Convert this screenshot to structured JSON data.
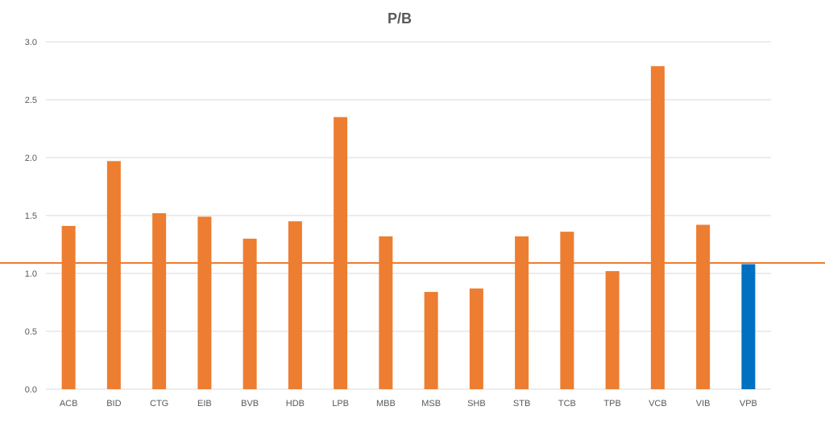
{
  "chart_data": {
    "type": "bar",
    "title": "P/B",
    "xlabel": "",
    "ylabel": "",
    "ylim": [
      0,
      3.0
    ],
    "yticks": [
      "0.0",
      "0.5",
      "1.0",
      "1.5",
      "2.0",
      "2.5",
      "3.0"
    ],
    "grid": true,
    "legend": "none",
    "categories": [
      "ACB",
      "BID",
      "CTG",
      "EIB",
      "BVB",
      "HDB",
      "LPB",
      "MBB",
      "MSB",
      "SHB",
      "STB",
      "TCB",
      "TPB",
      "VCB",
      "VIB",
      "VPB"
    ],
    "values": [
      1.41,
      1.97,
      1.52,
      1.49,
      1.3,
      1.45,
      2.35,
      1.32,
      0.84,
      0.87,
      1.32,
      1.36,
      1.02,
      2.79,
      1.42,
      1.08
    ],
    "bar_color": "#ED7D31",
    "highlight_category": "VPB",
    "highlight_color": "#0070C0",
    "reference_line": {
      "value": 1.09,
      "color": "#ED7D31"
    }
  }
}
